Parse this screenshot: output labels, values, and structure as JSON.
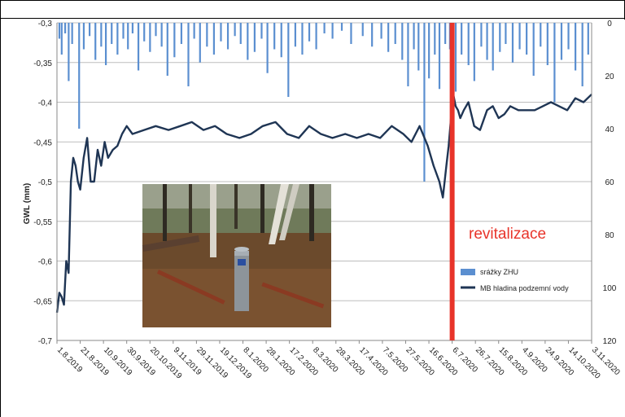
{
  "chart_data": {
    "type": "bar+line",
    "ylabel": "GWL (mm)",
    "y_left": {
      "min": -0.7,
      "max": -0.3,
      "step": 0.05,
      "ticks": [
        "-0,3",
        "-0,35",
        "-0,4",
        "-0,45",
        "-0,5",
        "-0,55",
        "-0,6",
        "-0,65",
        "-0,7"
      ]
    },
    "y_right": {
      "min": 0,
      "max": 120,
      "step": 20,
      "inverted": true,
      "ticks": [
        "0",
        "20",
        "40",
        "60",
        "80",
        "100",
        "120"
      ]
    },
    "x_ticks": [
      "1.8.2019",
      "21.8.2019",
      "10.9.2019",
      "30.9.2019",
      "20.10.2019",
      "9.11.2019",
      "29.11.2019",
      "19.12.2019",
      "8.1.2020",
      "28.1.2020",
      "17.2.2020",
      "8.3.2020",
      "28.3.2020",
      "17.4.2020",
      "7.5.2020",
      "27.5.2020",
      "16.6.2020",
      "6.7.2020",
      "26.7.2020",
      "15.8.2020",
      "4.9.2020",
      "24.9.2020",
      "14.10.2020",
      "3.11.2020"
    ],
    "grid": "horizontal",
    "legend_position": "right-middle",
    "series": [
      {
        "name": "srážky ZHU",
        "kind": "bar",
        "axis": "right",
        "color": "#5b8fd0",
        "x": [
          "2019-08-03",
          "2019-08-05",
          "2019-08-08",
          "2019-08-11",
          "2019-08-14",
          "2019-08-20",
          "2019-08-24",
          "2019-08-29",
          "2019-09-03",
          "2019-09-08",
          "2019-09-12",
          "2019-09-17",
          "2019-09-22",
          "2019-09-27",
          "2019-10-01",
          "2019-10-05",
          "2019-10-10",
          "2019-10-15",
          "2019-10-20",
          "2019-10-25",
          "2019-10-30",
          "2019-11-04",
          "2019-11-10",
          "2019-11-16",
          "2019-11-22",
          "2019-11-27",
          "2019-12-02",
          "2019-12-08",
          "2019-12-14",
          "2019-12-20",
          "2019-12-26",
          "2020-01-01",
          "2020-01-06",
          "2020-01-12",
          "2020-01-18",
          "2020-01-24",
          "2020-01-29",
          "2020-02-04",
          "2020-02-10",
          "2020-02-16",
          "2020-02-22",
          "2020-02-28",
          "2020-03-05",
          "2020-03-11",
          "2020-03-18",
          "2020-03-25",
          "2020-04-02",
          "2020-04-10",
          "2020-04-20",
          "2020-04-28",
          "2020-05-06",
          "2020-05-12",
          "2020-05-18",
          "2020-05-24",
          "2020-05-29",
          "2020-06-03",
          "2020-06-07",
          "2020-06-12",
          "2020-06-16",
          "2020-06-21",
          "2020-06-25",
          "2020-06-30",
          "2020-07-04",
          "2020-07-09",
          "2020-07-14",
          "2020-07-20",
          "2020-07-25",
          "2020-07-31",
          "2020-08-05",
          "2020-08-10",
          "2020-08-16",
          "2020-08-21",
          "2020-08-27",
          "2020-09-02",
          "2020-09-08",
          "2020-09-14",
          "2020-09-20",
          "2020-09-26",
          "2020-10-02",
          "2020-10-08",
          "2020-10-14",
          "2020-10-20",
          "2020-10-26",
          "2020-10-31"
        ],
        "values": [
          6,
          12,
          4,
          22,
          8,
          40,
          10,
          5,
          14,
          9,
          16,
          8,
          12,
          6,
          10,
          4,
          18,
          7,
          11,
          5,
          9,
          20,
          13,
          8,
          24,
          6,
          15,
          9,
          12,
          7,
          10,
          5,
          8,
          14,
          11,
          6,
          19,
          10,
          13,
          28,
          9,
          12,
          7,
          10,
          4,
          6,
          3,
          8,
          5,
          9,
          6,
          11,
          8,
          14,
          24,
          10,
          18,
          60,
          21,
          12,
          25,
          8,
          10,
          26,
          12,
          16,
          22,
          9,
          14,
          18,
          11,
          8,
          15,
          10,
          12,
          20,
          9,
          16,
          30,
          14,
          10,
          18,
          24,
          12
        ]
      },
      {
        "name": "MB hladina podzemní vody",
        "kind": "line",
        "axis": "left",
        "color": "#1f3554",
        "x": [
          "2019-08-01",
          "2019-08-03",
          "2019-08-05",
          "2019-08-07",
          "2019-08-09",
          "2019-08-11",
          "2019-08-13",
          "2019-08-15",
          "2019-08-17",
          "2019-08-19",
          "2019-08-21",
          "2019-08-24",
          "2019-08-27",
          "2019-08-30",
          "2019-09-02",
          "2019-09-05",
          "2019-09-08",
          "2019-09-11",
          "2019-09-14",
          "2019-09-18",
          "2019-09-22",
          "2019-09-26",
          "2019-09-30",
          "2019-10-05",
          "2019-10-15",
          "2019-10-25",
          "2019-11-05",
          "2019-11-15",
          "2019-11-25",
          "2019-12-05",
          "2019-12-15",
          "2019-12-25",
          "2020-01-05",
          "2020-01-15",
          "2020-01-25",
          "2020-02-05",
          "2020-02-15",
          "2020-02-25",
          "2020-03-05",
          "2020-03-15",
          "2020-03-25",
          "2020-04-05",
          "2020-04-15",
          "2020-04-25",
          "2020-05-05",
          "2020-05-15",
          "2020-05-25",
          "2020-06-01",
          "2020-06-08",
          "2020-06-15",
          "2020-06-20",
          "2020-06-25",
          "2020-06-28",
          "2020-07-01",
          "2020-07-03",
          "2020-07-05",
          "2020-07-07",
          "2020-07-09",
          "2020-07-11",
          "2020-07-13",
          "2020-07-16",
          "2020-07-20",
          "2020-07-25",
          "2020-07-30",
          "2020-08-05",
          "2020-08-10",
          "2020-08-15",
          "2020-08-20",
          "2020-08-25",
          "2020-09-01",
          "2020-09-08",
          "2020-09-15",
          "2020-09-22",
          "2020-09-29",
          "2020-10-06",
          "2020-10-13",
          "2020-10-20",
          "2020-10-27",
          "2020-11-03"
        ],
        "values": [
          -0.665,
          -0.64,
          -0.645,
          -0.655,
          -0.6,
          -0.615,
          -0.5,
          -0.47,
          -0.48,
          -0.5,
          -0.51,
          -0.47,
          -0.445,
          -0.5,
          -0.5,
          -0.46,
          -0.48,
          -0.45,
          -0.47,
          -0.46,
          -0.455,
          -0.44,
          -0.43,
          -0.44,
          -0.435,
          -0.43,
          -0.435,
          -0.43,
          -0.425,
          -0.435,
          -0.43,
          -0.44,
          -0.445,
          -0.44,
          -0.43,
          -0.425,
          -0.44,
          -0.445,
          -0.43,
          -0.44,
          -0.445,
          -0.44,
          -0.445,
          -0.44,
          -0.445,
          -0.43,
          -0.44,
          -0.45,
          -0.43,
          -0.455,
          -0.48,
          -0.5,
          -0.52,
          -0.48,
          -0.455,
          -0.42,
          -0.39,
          -0.405,
          -0.41,
          -0.42,
          -0.41,
          -0.4,
          -0.43,
          -0.435,
          -0.41,
          -0.405,
          -0.42,
          -0.415,
          -0.405,
          -0.41,
          -0.41,
          -0.41,
          -0.405,
          -0.4,
          -0.405,
          -0.41,
          -0.395,
          -0.4,
          -0.39
        ]
      }
    ],
    "annotations": [
      {
        "text": "revitalizace",
        "color": "#e8342a",
        "x": "2020-07-06"
      }
    ]
  }
}
